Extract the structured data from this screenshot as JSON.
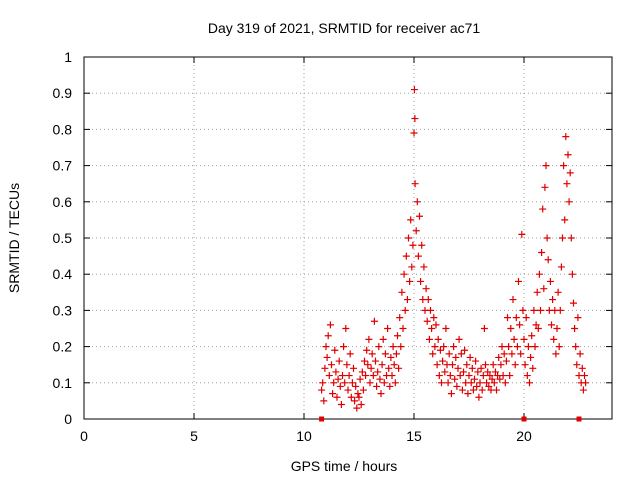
{
  "chart_data": {
    "type": "scatter",
    "title": "Day 319 of 2021, SRMTID for receiver ac71",
    "xlabel": "GPS time / hours",
    "ylabel": "SRMTID / TECUs",
    "xlim": [
      0,
      24
    ],
    "ylim": [
      0,
      1
    ],
    "xticks": [
      "0",
      "5",
      "10",
      "15",
      "20"
    ],
    "xtick_values": [
      0,
      5,
      10,
      15,
      20
    ],
    "yticks": [
      "0",
      "0.1",
      "0.2",
      "0.3",
      "0.4",
      "0.5",
      "0.6",
      "0.7",
      "0.8",
      "0.9",
      "1"
    ],
    "ytick_values": [
      0,
      0.1,
      0.2,
      0.3,
      0.4,
      0.5,
      0.6,
      0.7,
      0.8,
      0.9,
      1
    ],
    "grid": true,
    "marker": "plus",
    "color": "#e00000",
    "series": [
      {
        "name": "SRMTID",
        "points": [
          [
            10.8,
            0.08
          ],
          [
            10.85,
            0.1
          ],
          [
            10.9,
            0.05
          ],
          [
            10.95,
            0.14
          ],
          [
            11.0,
            0.2
          ],
          [
            11.05,
            0.17
          ],
          [
            11.1,
            0.23
          ],
          [
            11.15,
            0.12
          ],
          [
            11.2,
            0.26
          ],
          [
            11.25,
            0.15
          ],
          [
            11.3,
            0.07
          ],
          [
            11.35,
            0.1
          ],
          [
            11.4,
            0.19
          ],
          [
            11.45,
            0.13
          ],
          [
            11.5,
            0.06
          ],
          [
            11.55,
            0.11
          ],
          [
            11.6,
            0.16
          ],
          [
            11.65,
            0.09
          ],
          [
            11.7,
            0.04
          ],
          [
            11.75,
            0.12
          ],
          [
            11.8,
            0.2
          ],
          [
            11.85,
            0.1
          ],
          [
            11.9,
            0.25
          ],
          [
            11.95,
            0.15
          ],
          [
            12.0,
            0.08
          ],
          [
            12.05,
            0.12
          ],
          [
            12.1,
            0.18
          ],
          [
            12.15,
            0.06
          ],
          [
            12.2,
            0.1
          ],
          [
            12.25,
            0.14
          ],
          [
            12.3,
            0.05
          ],
          [
            12.35,
            0.09
          ],
          [
            12.4,
            0.03
          ],
          [
            12.45,
            0.07
          ],
          [
            12.5,
            0.06
          ],
          [
            12.55,
            0.11
          ],
          [
            12.6,
            0.04
          ],
          [
            12.65,
            0.13
          ],
          [
            12.7,
            0.08
          ],
          [
            12.75,
            0.16
          ],
          [
            12.8,
            0.12
          ],
          [
            12.85,
            0.19
          ],
          [
            12.9,
            0.15
          ],
          [
            12.95,
            0.22
          ],
          [
            13.0,
            0.1
          ],
          [
            13.05,
            0.14
          ],
          [
            13.1,
            0.18
          ],
          [
            13.15,
            0.12
          ],
          [
            13.2,
            0.27
          ],
          [
            13.25,
            0.16
          ],
          [
            13.3,
            0.09
          ],
          [
            13.35,
            0.13
          ],
          [
            13.4,
            0.2
          ],
          [
            13.45,
            0.11
          ],
          [
            13.5,
            0.07
          ],
          [
            13.55,
            0.15
          ],
          [
            13.6,
            0.22
          ],
          [
            13.65,
            0.1
          ],
          [
            13.7,
            0.18
          ],
          [
            13.75,
            0.12
          ],
          [
            13.8,
            0.25
          ],
          [
            13.85,
            0.14
          ],
          [
            13.9,
            0.09
          ],
          [
            13.95,
            0.17
          ],
          [
            14.0,
            0.12
          ],
          [
            14.05,
            0.2
          ],
          [
            14.1,
            0.15
          ],
          [
            14.15,
            0.1
          ],
          [
            14.2,
            0.18
          ],
          [
            14.25,
            0.23
          ],
          [
            14.3,
            0.14
          ],
          [
            14.35,
            0.28
          ],
          [
            14.4,
            0.2
          ],
          [
            14.45,
            0.35
          ],
          [
            14.5,
            0.25
          ],
          [
            14.55,
            0.4
          ],
          [
            14.6,
            0.3
          ],
          [
            14.65,
            0.45
          ],
          [
            14.7,
            0.33
          ],
          [
            14.75,
            0.5
          ],
          [
            14.8,
            0.38
          ],
          [
            14.85,
            0.55
          ],
          [
            14.9,
            0.42
          ],
          [
            14.95,
            0.48
          ],
          [
            15.0,
            0.79
          ],
          [
            15.02,
            0.91
          ],
          [
            15.04,
            0.83
          ],
          [
            15.05,
            0.65
          ],
          [
            15.1,
            0.52
          ],
          [
            15.15,
            0.6
          ],
          [
            15.2,
            0.45
          ],
          [
            15.25,
            0.56
          ],
          [
            15.3,
            0.38
          ],
          [
            15.35,
            0.48
          ],
          [
            15.4,
            0.33
          ],
          [
            15.45,
            0.42
          ],
          [
            15.5,
            0.3
          ],
          [
            15.55,
            0.36
          ],
          [
            15.6,
            0.27
          ],
          [
            15.65,
            0.33
          ],
          [
            15.7,
            0.22
          ],
          [
            15.75,
            0.3
          ],
          [
            15.8,
            0.25
          ],
          [
            15.85,
            0.18
          ],
          [
            15.9,
            0.28
          ],
          [
            15.95,
            0.2
          ],
          [
            16.0,
            0.26
          ],
          [
            16.05,
            0.15
          ],
          [
            16.1,
            0.22
          ],
          [
            16.15,
            0.12
          ],
          [
            16.2,
            0.19
          ],
          [
            16.25,
            0.1
          ],
          [
            16.3,
            0.16
          ],
          [
            16.35,
            0.2
          ],
          [
            16.4,
            0.13
          ],
          [
            16.45,
            0.25
          ],
          [
            16.5,
            0.15
          ],
          [
            16.55,
            0.1
          ],
          [
            16.6,
            0.18
          ],
          [
            16.65,
            0.12
          ],
          [
            16.7,
            0.07
          ],
          [
            16.75,
            0.15
          ],
          [
            16.8,
            0.2
          ],
          [
            16.85,
            0.11
          ],
          [
            16.9,
            0.17
          ],
          [
            16.95,
            0.09
          ],
          [
            17.0,
            0.14
          ],
          [
            17.05,
            0.22
          ],
          [
            17.1,
            0.12
          ],
          [
            17.15,
            0.18
          ],
          [
            17.2,
            0.08
          ],
          [
            17.25,
            0.13
          ],
          [
            17.3,
            0.19
          ],
          [
            17.35,
            0.1
          ],
          [
            17.4,
            0.15
          ],
          [
            17.45,
            0.07
          ],
          [
            17.5,
            0.12
          ],
          [
            17.55,
            0.17
          ],
          [
            17.6,
            0.1
          ],
          [
            17.65,
            0.14
          ],
          [
            17.7,
            0.08
          ],
          [
            17.75,
            0.11
          ],
          [
            17.8,
            0.16
          ],
          [
            17.85,
            0.09
          ],
          [
            17.9,
            0.13
          ],
          [
            17.95,
            0.06
          ],
          [
            18.0,
            0.1
          ],
          [
            18.05,
            0.14
          ],
          [
            18.1,
            0.08
          ],
          [
            18.15,
            0.12
          ],
          [
            18.2,
            0.25
          ],
          [
            18.25,
            0.15
          ],
          [
            18.3,
            0.1
          ],
          [
            18.35,
            0.13
          ],
          [
            18.4,
            0.09
          ],
          [
            18.45,
            0.12
          ],
          [
            18.5,
            0.08
          ],
          [
            18.55,
            0.11
          ],
          [
            18.6,
            0.15
          ],
          [
            18.65,
            0.1
          ],
          [
            18.7,
            0.13
          ],
          [
            18.75,
            0.08
          ],
          [
            18.8,
            0.12
          ],
          [
            18.85,
            0.17
          ],
          [
            18.9,
            0.11
          ],
          [
            18.95,
            0.15
          ],
          [
            19.0,
            0.2
          ],
          [
            19.05,
            0.12
          ],
          [
            19.1,
            0.18
          ],
          [
            19.15,
            0.1
          ],
          [
            19.2,
            0.16
          ],
          [
            19.25,
            0.28
          ],
          [
            19.3,
            0.2
          ],
          [
            19.35,
            0.12
          ],
          [
            19.4,
            0.25
          ],
          [
            19.45,
            0.18
          ],
          [
            19.5,
            0.33
          ],
          [
            19.55,
            0.22
          ],
          [
            19.6,
            0.15
          ],
          [
            19.65,
            0.28
          ],
          [
            19.7,
            0.2
          ],
          [
            19.75,
            0.38
          ],
          [
            19.8,
            0.26
          ],
          [
            19.85,
            0.18
          ],
          [
            19.9,
            0.51
          ],
          [
            19.95,
            0.3
          ],
          [
            20.0,
            0.22
          ],
          [
            20.05,
            0.15
          ],
          [
            20.1,
            0.28
          ],
          [
            20.15,
            0.12
          ],
          [
            20.2,
            0.2
          ],
          [
            20.25,
            0.1
          ],
          [
            20.3,
            0.17
          ],
          [
            20.35,
            0.23
          ],
          [
            20.4,
            0.14
          ],
          [
            20.45,
            0.3
          ],
          [
            20.5,
            0.2
          ],
          [
            20.55,
            0.26
          ],
          [
            20.6,
            0.35
          ],
          [
            20.65,
            0.25
          ],
          [
            20.7,
            0.4
          ],
          [
            20.75,
            0.3
          ],
          [
            20.8,
            0.46
          ],
          [
            20.85,
            0.58
          ],
          [
            20.9,
            0.36
          ],
          [
            20.95,
            0.64
          ],
          [
            21.0,
            0.7
          ],
          [
            21.05,
            0.5
          ],
          [
            21.1,
            0.44
          ],
          [
            21.15,
            0.3
          ],
          [
            21.2,
            0.38
          ],
          [
            21.25,
            0.26
          ],
          [
            21.3,
            0.33
          ],
          [
            21.35,
            0.22
          ],
          [
            21.4,
            0.3
          ],
          [
            21.45,
            0.18
          ],
          [
            21.5,
            0.25
          ],
          [
            21.55,
            0.35
          ],
          [
            21.6,
            0.2
          ],
          [
            21.65,
            0.3
          ],
          [
            21.7,
            0.42
          ],
          [
            21.75,
            0.5
          ],
          [
            21.8,
            0.7
          ],
          [
            21.85,
            0.55
          ],
          [
            21.9,
            0.78
          ],
          [
            21.95,
            0.65
          ],
          [
            22.0,
            0.73
          ],
          [
            22.05,
            0.6
          ],
          [
            22.1,
            0.68
          ],
          [
            22.15,
            0.5
          ],
          [
            22.2,
            0.4
          ],
          [
            22.25,
            0.32
          ],
          [
            22.3,
            0.25
          ],
          [
            22.35,
            0.2
          ],
          [
            22.4,
            0.15
          ],
          [
            22.45,
            0.28
          ],
          [
            22.5,
            0.12
          ],
          [
            22.55,
            0.18
          ],
          [
            22.6,
            0.1
          ],
          [
            22.65,
            0.14
          ],
          [
            22.7,
            0.08
          ],
          [
            22.75,
            0.12
          ],
          [
            22.8,
            0.1
          ]
        ]
      }
    ],
    "zero_markers": [
      10.8,
      20.0,
      22.5
    ]
  }
}
